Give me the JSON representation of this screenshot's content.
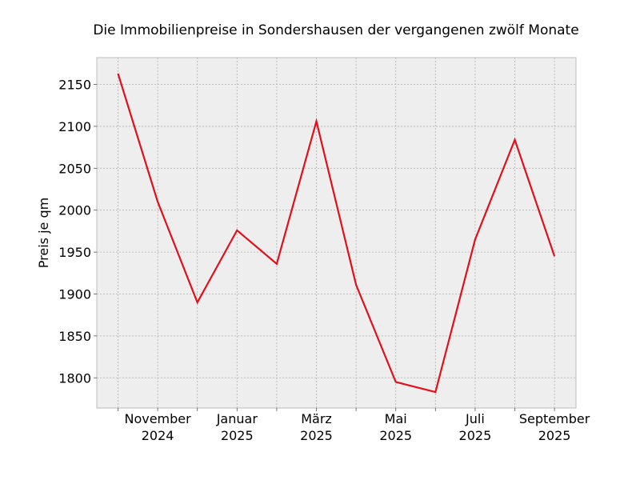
{
  "chart_data": {
    "type": "line",
    "title": "Die Immobilienpreise in Sondershausen der vergangenen zwölf Monate",
    "ylabel": "Preis je qm",
    "xlabel": "",
    "x": [
      "2024-10",
      "2024-11",
      "2024-12",
      "2025-01",
      "2025-02",
      "2025-03",
      "2025-04",
      "2025-05",
      "2025-06",
      "2025-07",
      "2025-08",
      "2025-09"
    ],
    "series": [
      {
        "values": [
          2163,
          2010,
          1890,
          1976,
          1936,
          2106,
          1911,
          1795,
          1783,
          1965,
          2084,
          1945
        ],
        "color": "#e0101a"
      }
    ],
    "ylim": [
      1764,
      2182
    ],
    "yticks": [
      1800,
      1850,
      1900,
      1950,
      2000,
      2050,
      2100,
      2150
    ],
    "xtick_labels": [
      {
        "index": 1,
        "line1": "November",
        "line2": "2024"
      },
      {
        "index": 3,
        "line1": "Januar",
        "line2": "2025"
      },
      {
        "index": 5,
        "line1": "März",
        "line2": "2025"
      },
      {
        "index": 7,
        "line1": "Mai",
        "line2": "2025"
      },
      {
        "index": 9,
        "line1": "Juli",
        "line2": "2025"
      },
      {
        "index": 11,
        "line1": "September",
        "line2": "2025"
      }
    ],
    "grid": true,
    "background": "#eeeeee"
  }
}
